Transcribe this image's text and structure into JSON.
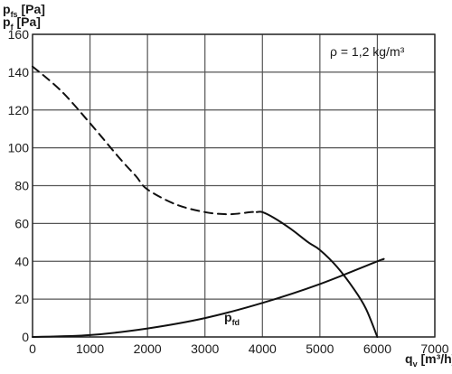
{
  "chart_data": {
    "type": "line",
    "ylabel_top": {
      "main": "p",
      "sub": "fs",
      "unit": " [Pa]"
    },
    "ylabel_bottom": {
      "main": "p",
      "sub": "f",
      "unit": " [Pa]"
    },
    "xlabel": {
      "main": "q",
      "sub": "v",
      "unit": " [m³/h]"
    },
    "annotation": "ρ = 1,2 kg/m³",
    "xlim": [
      0,
      7000
    ],
    "ylim": [
      0,
      160
    ],
    "x_ticks": [
      "0",
      "1000",
      "2000",
      "3000",
      "4000",
      "5000",
      "6000",
      "7000"
    ],
    "y_ticks": [
      "0",
      "20",
      "40",
      "60",
      "80",
      "100",
      "120",
      "140",
      "160"
    ],
    "grid": true,
    "series": [
      {
        "style": "dashed",
        "x": [
          0,
          500,
          1000,
          1500,
          1800,
          2000,
          2500,
          3000,
          3300,
          3500,
          3800,
          3900
        ],
        "y": [
          143,
          130,
          113,
          95,
          85,
          78,
          70,
          66,
          65,
          65,
          66,
          66
        ]
      },
      {
        "style": "solid",
        "x": [
          3900,
          4000,
          4200,
          4500,
          4800,
          5000,
          5300,
          5600,
          5800,
          6000
        ],
        "y": [
          66,
          66,
          63,
          57,
          50,
          46,
          37,
          25,
          15,
          0
        ]
      },
      {
        "name": "p",
        "name_sub": "fd",
        "style": "solid",
        "x": [
          0,
          1000,
          2000,
          3000,
          4000,
          5000,
          6000,
          6100
        ],
        "y": [
          0,
          1,
          4.5,
          10,
          18,
          28,
          40,
          41
        ]
      }
    ]
  }
}
